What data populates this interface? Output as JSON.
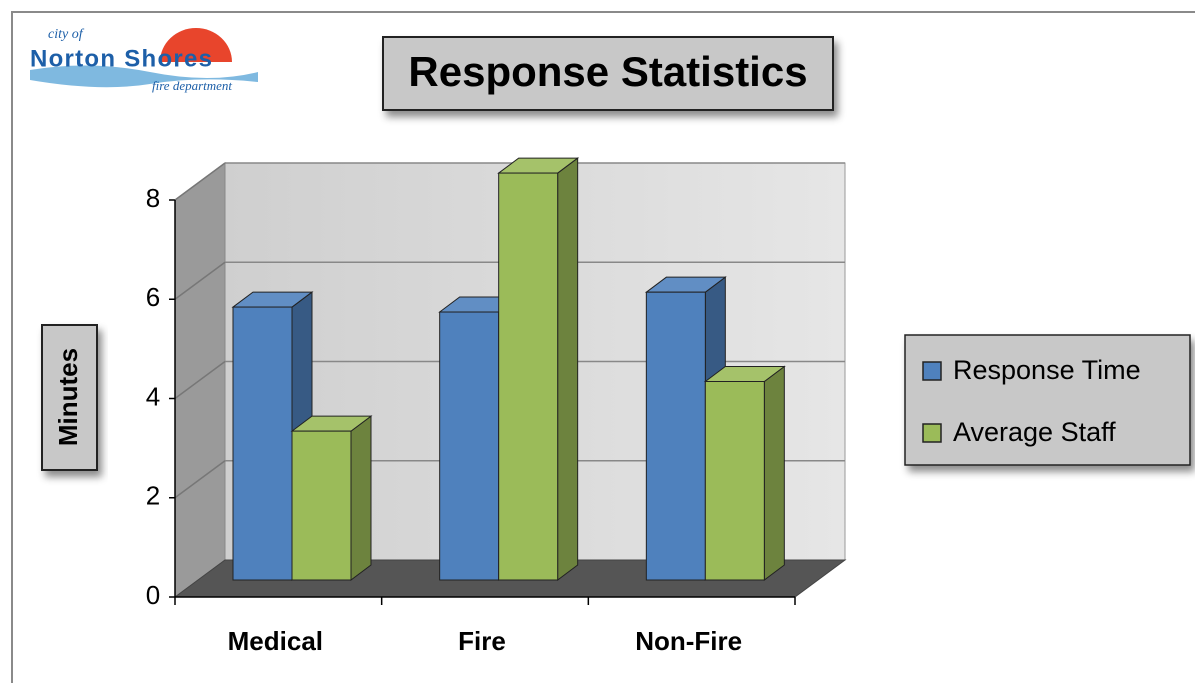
{
  "logo": {
    "line1": "city of",
    "line2": "Norton Shores",
    "line3": "fire department"
  },
  "chart_data": {
    "type": "bar",
    "title": "Response Statistics",
    "y_label": "Minutes",
    "categories": [
      "Medical",
      "Fire",
      "Non-Fire"
    ],
    "series": [
      {
        "name": "Response Time",
        "color": "#4f81bd",
        "values": [
          5.5,
          5.4,
          5.8
        ]
      },
      {
        "name": "Average Staff",
        "color": "#9bbb59",
        "values": [
          3.0,
          8.2,
          4.0
        ]
      }
    ],
    "ylim": [
      0,
      8
    ],
    "yticks": [
      0,
      2,
      4,
      6,
      8
    ],
    "grid": true,
    "legend": "right"
  }
}
